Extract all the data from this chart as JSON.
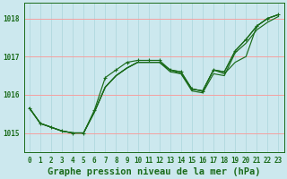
{
  "bg_color": "#cce8ee",
  "grid_color_h": "#f5a0a0",
  "grid_color_v": "#aad4da",
  "line_color": "#1a6b1a",
  "title": "Graphe pression niveau de la mer (hPa)",
  "xlim": [
    -0.5,
    23.5
  ],
  "ylim": [
    1014.5,
    1018.4
  ],
  "yticks": [
    1015,
    1016,
    1017,
    1018
  ],
  "xticks": [
    0,
    1,
    2,
    3,
    4,
    5,
    6,
    7,
    8,
    9,
    10,
    11,
    12,
    13,
    14,
    15,
    16,
    17,
    18,
    19,
    20,
    21,
    22,
    23
  ],
  "series": [
    [
      1015.65,
      1015.25,
      1015.15,
      1015.05,
      1015.0,
      1015.0,
      1015.55,
      1016.2,
      1016.5,
      1016.7,
      1016.85,
      1016.85,
      1016.85,
      1016.6,
      1016.55,
      1016.1,
      1016.05,
      1016.55,
      1016.5,
      1017.1,
      1017.35,
      1017.7,
      1017.9,
      1018.05
    ],
    [
      1015.65,
      1015.25,
      1015.15,
      1015.05,
      1015.0,
      1015.0,
      1015.55,
      1016.2,
      1016.5,
      1016.7,
      1016.85,
      1016.85,
      1016.85,
      1016.6,
      1016.55,
      1016.1,
      1016.05,
      1016.55,
      1016.5,
      1017.1,
      1017.35,
      1017.7,
      1017.9,
      1018.05
    ],
    [
      1015.65,
      1015.25,
      1015.15,
      1015.05,
      1015.0,
      1015.0,
      1015.55,
      1016.2,
      1016.5,
      1016.7,
      1016.85,
      1016.85,
      1016.85,
      1016.6,
      1016.55,
      1016.1,
      1016.05,
      1016.55,
      1016.5,
      1017.1,
      1017.35,
      1017.7,
      1017.9,
      1018.05
    ],
    [
      1015.65,
      1015.25,
      1015.15,
      1015.05,
      1015.0,
      1015.0,
      1015.55,
      1016.35,
      1016.65,
      1016.85,
      1016.9,
      1016.9,
      1016.95,
      1016.65,
      1016.55,
      1016.15,
      1016.1,
      1016.65,
      1016.6,
      1017.15,
      1017.45,
      1017.8,
      1018.0,
      1018.1
    ]
  ],
  "line1": [
    1015.65,
    1015.25,
    1015.15,
    1015.05,
    1015.0,
    1015.0,
    1015.55,
    1016.2,
    1016.5,
    1016.7,
    1016.85,
    1016.85,
    1016.85,
    1016.6,
    1016.55,
    1016.1,
    1016.05,
    1016.55,
    1016.5,
    1017.1,
    1017.35,
    1017.7,
    1017.9,
    1018.05
  ],
  "line2_dip": [
    1015.65,
    1015.25,
    1015.15,
    1015.05,
    1015.0,
    1015.0,
    1015.55,
    1016.2,
    1016.5,
    1016.7,
    1016.85,
    1016.85,
    1016.85,
    1016.65,
    1016.55,
    1016.15,
    1016.1,
    1016.65,
    1016.6,
    1017.15,
    1017.45,
    1017.8,
    1018.0,
    1018.1
  ],
  "line_marked": [
    1015.65,
    1015.25,
    1015.15,
    1015.05,
    1015.0,
    1015.0,
    1015.6,
    1016.45,
    1016.65,
    1016.85,
    1016.9,
    1016.9,
    1016.9,
    1016.65,
    1016.6,
    1016.15,
    1016.1,
    1016.65,
    1016.6,
    1017.15,
    1017.45,
    1017.8,
    1018.0,
    1018.1
  ],
  "line_dip_big": [
    1015.65,
    1015.25,
    1015.15,
    1015.05,
    1015.0,
    1015.0,
    1015.55,
    1016.2,
    1016.5,
    1016.7,
    1016.85,
    1016.85,
    1016.85,
    1016.65,
    1016.6,
    1016.15,
    1016.1,
    1016.65,
    1016.55,
    1016.85,
    1017.0,
    1017.8,
    1018.0,
    1018.1
  ],
  "title_fontsize": 7.5,
  "tick_fontsize": 5.5
}
